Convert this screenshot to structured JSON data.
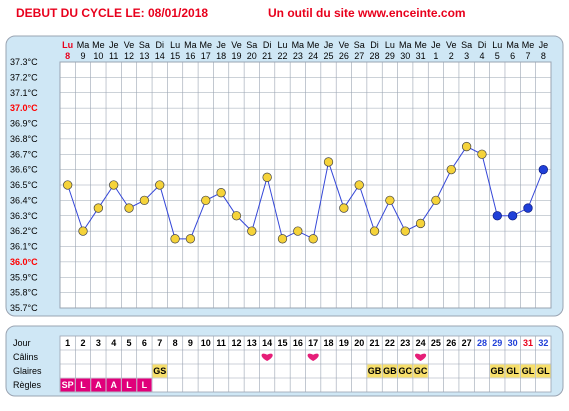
{
  "header": {
    "title": "DEBUT DU CYCLE LE: 08/01/2018",
    "site": "Un outil du site www.enceinte.com"
  },
  "colors": {
    "background": "#ffffff",
    "panel": "#cfe7f5",
    "grid": "#9aa4b2",
    "title_red": "#e8001c",
    "highlight_temp": "#ff0000",
    "highlight_day": "#e0007a",
    "line": "#3547d8",
    "point_yellow": "#f5d33a",
    "point_blue": "#1f3fd8",
    "badge_yellow": "#f7df6b",
    "badge_magenta": "#e0007a",
    "heart": "#e61e78",
    "day_blue": "#1f3fd8"
  },
  "chart_data": {
    "type": "line",
    "weekdays": [
      "Lu",
      "Ma",
      "Me",
      "Je",
      "Ve",
      "Sa",
      "Di",
      "Lu",
      "Ma",
      "Me",
      "Je",
      "Ve",
      "Sa",
      "Di",
      "Lu",
      "Ma",
      "Me",
      "Je",
      "Ve",
      "Sa",
      "Di",
      "Lu",
      "Ma",
      "Me",
      "Je",
      "Ve",
      "Sa",
      "Di",
      "Lu",
      "Ma",
      "Me",
      "Je"
    ],
    "dates": [
      "8",
      "9",
      "10",
      "11",
      "12",
      "13",
      "14",
      "15",
      "16",
      "17",
      "18",
      "19",
      "20",
      "21",
      "22",
      "23",
      "24",
      "25",
      "26",
      "27",
      "28",
      "29",
      "30",
      "31",
      "1",
      "2",
      "3",
      "4",
      "5",
      "6",
      "7",
      "8"
    ],
    "highlight_first_day": true,
    "y_ticks": [
      "37.3°C",
      "37.2°C",
      "37.1°C",
      "37.0°C",
      "36.9°C",
      "36.8°C",
      "36.7°C",
      "36.6°C",
      "36.5°C",
      "36.4°C",
      "36.3°C",
      "36.2°C",
      "36.1°C",
      "36.0°C",
      "35.9°C",
      "35.8°C",
      "35.7°C"
    ],
    "y_highlight": [
      "37.0°C",
      "36.0°C"
    ],
    "ylim": [
      35.7,
      37.3
    ],
    "grid": true,
    "temperatures": [
      36.5,
      36.2,
      36.35,
      36.5,
      36.35,
      36.4,
      36.5,
      36.15,
      36.15,
      36.4,
      36.45,
      36.3,
      36.2,
      36.55,
      36.15,
      36.2,
      36.15,
      36.65,
      36.35,
      36.5,
      36.2,
      36.4,
      36.2,
      36.25,
      36.4,
      36.6,
      36.75,
      36.7,
      36.3,
      36.3,
      36.35,
      36.6
    ],
    "blue_points": [
      29,
      30,
      31,
      32
    ],
    "table": {
      "row_labels": [
        "Jour",
        "Câlins",
        "Glaires",
        "Règles"
      ],
      "days": [
        "1",
        "2",
        "3",
        "4",
        "5",
        "6",
        "7",
        "8",
        "9",
        "10",
        "11",
        "12",
        "13",
        "14",
        "15",
        "16",
        "17",
        "18",
        "19",
        "20",
        "21",
        "22",
        "23",
        "24",
        "25",
        "26",
        "27",
        "28",
        "29",
        "30",
        "31",
        "32"
      ],
      "blue_days": [
        28,
        29,
        30,
        32
      ],
      "red_days": [
        31
      ],
      "calins_days": [
        14,
        17,
        24
      ],
      "glaires": {
        "7": "GS",
        "21": "GB",
        "22": "GB",
        "23": "GC",
        "24": "GC",
        "29": "GB",
        "30": "GL",
        "31": "GL",
        "32": "GL"
      },
      "regles": {
        "1": "SP",
        "2": "L",
        "3": "A",
        "4": "A",
        "5": "L",
        "6": "L"
      }
    }
  }
}
